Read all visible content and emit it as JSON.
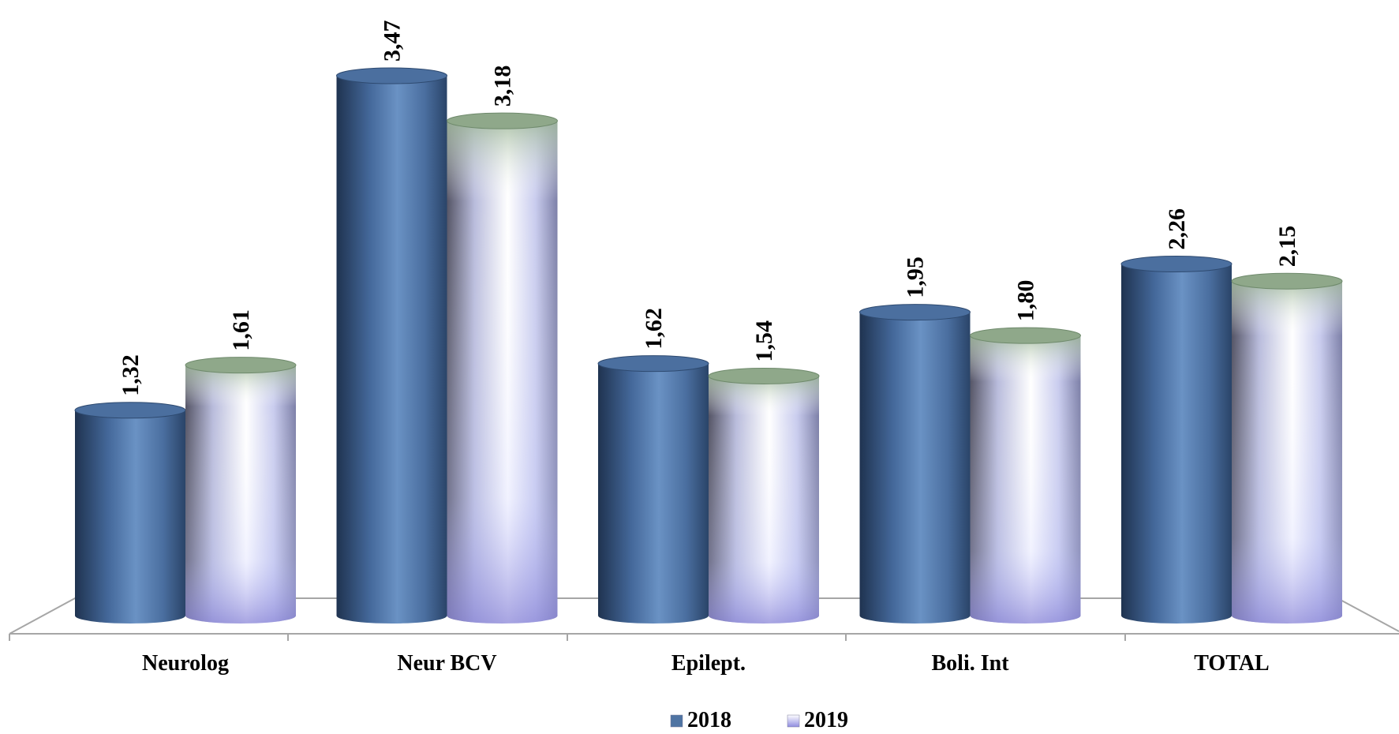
{
  "chart_data": {
    "type": "bar",
    "title": "",
    "xlabel": "",
    "ylabel": "",
    "categories": [
      "Neurolog",
      "Neur BCV",
      "Epilept.",
      "Boli. Int",
      "TOTAL"
    ],
    "series": [
      {
        "name": "2018",
        "values": [
          1.32,
          3.47,
          1.62,
          1.95,
          2.26
        ],
        "labels": [
          "1,32",
          "3,47",
          "1,62",
          "1,95",
          "2,26"
        ],
        "color": "#4f74a3"
      },
      {
        "name": "2019",
        "values": [
          1.61,
          3.18,
          1.54,
          1.8,
          2.15
        ],
        "labels": [
          "1,61",
          "3,18",
          "1,54",
          "1,80",
          "2,15"
        ],
        "color": "#d6dcff"
      }
    ],
    "ylim": [
      0,
      3.47
    ],
    "grid": false,
    "legend": "bottom"
  }
}
